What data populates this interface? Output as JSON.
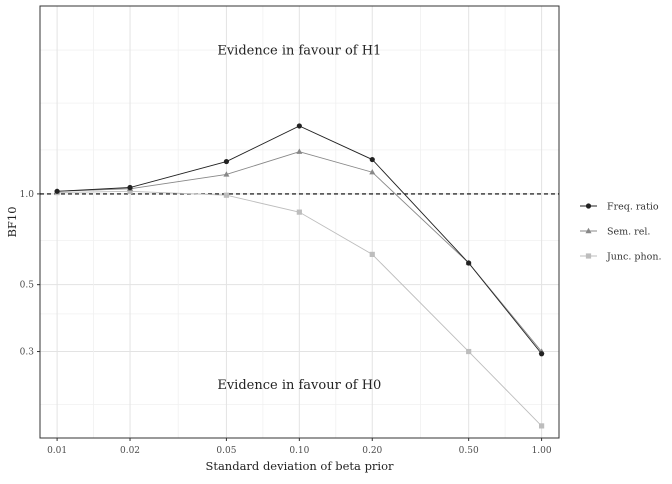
{
  "chart_data": {
    "type": "line",
    "xlabel": "Standard deviation of beta prior",
    "ylabel": "BF10",
    "x_scale": "log",
    "y_scale": "log",
    "x": [
      0.01,
      0.02,
      0.05,
      0.1,
      0.2,
      0.5,
      1.0
    ],
    "x_tick_labels": [
      "0.01",
      "0.02",
      "0.05",
      "0.10",
      "0.20",
      "0.50",
      "1.00"
    ],
    "y_ticks": [
      0.3,
      0.5,
      1.0
    ],
    "y_tick_labels": [
      "0.3",
      "0.5",
      "1.0"
    ],
    "xlim": [
      0.0085,
      1.18
    ],
    "ylim": [
      0.155,
      4.2
    ],
    "reference_line": {
      "y": 1.0,
      "style": "dashed"
    },
    "annotations": [
      {
        "text": "Evidence in favour of H1",
        "x": 0.1,
        "y": 2.9
      },
      {
        "text": "Evidence in favour of H0",
        "x": 0.1,
        "y": 0.225
      }
    ],
    "series": [
      {
        "name": "Freq. ratio",
        "marker": "circle",
        "color": "#222222",
        "values": [
          1.02,
          1.05,
          1.28,
          1.68,
          1.3,
          0.59,
          0.295
        ]
      },
      {
        "name": "Sem. rel.",
        "marker": "triangle",
        "color": "#888888",
        "values": [
          1.02,
          1.04,
          1.16,
          1.38,
          1.18,
          0.59,
          0.3
        ]
      },
      {
        "name": "Junc. phon.",
        "marker": "square",
        "color": "#bdbdbd",
        "values": [
          1.01,
          1.02,
          0.99,
          0.87,
          0.63,
          0.3,
          0.17
        ]
      }
    ],
    "grid": true,
    "legend_position": "right"
  }
}
